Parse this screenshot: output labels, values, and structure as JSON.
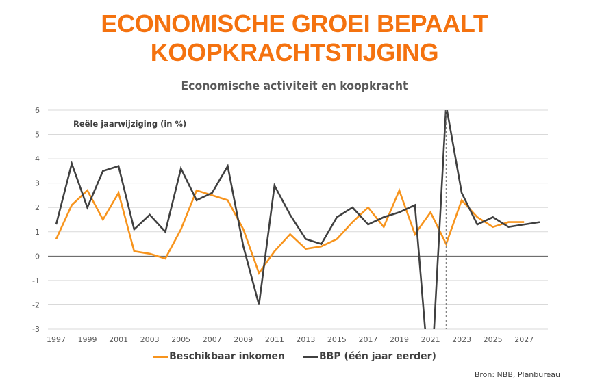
{
  "header": {
    "title_line1": "ECONOMISCHE GROEI BEPAALT",
    "title_line2": "KOOPKRACHTSTIJGING"
  },
  "chart_data": {
    "type": "line",
    "title": "Economische activiteit en koopkracht",
    "ylabel": "Reële jaarwijziging (in %)",
    "xlabel": "",
    "ylim": [
      -3,
      6
    ],
    "yticks": [
      6,
      5,
      4,
      3,
      2,
      1,
      0,
      -1,
      -2,
      -3
    ],
    "x": [
      1997,
      1998,
      1999,
      2000,
      2001,
      2002,
      2003,
      2004,
      2005,
      2006,
      2007,
      2008,
      2009,
      2010,
      2011,
      2012,
      2013,
      2014,
      2015,
      2016,
      2017,
      2018,
      2019,
      2020,
      2021,
      2022,
      2023,
      2024,
      2025,
      2026,
      2027,
      2028
    ],
    "xticks": [
      "1997",
      "1999",
      "2001",
      "2003",
      "2005",
      "2007",
      "2009",
      "2011",
      "2013",
      "2015",
      "2017",
      "2019",
      "2021",
      "2023",
      "2025",
      "2027"
    ],
    "grid": true,
    "legend_position": "bottom",
    "forecast_marker_year": 2022,
    "series": [
      {
        "name": "Beschikbaar inkomen",
        "color": "#f7941d",
        "values": [
          0.7,
          2.1,
          2.7,
          1.5,
          2.6,
          0.2,
          0.1,
          -0.1,
          1.1,
          2.7,
          2.5,
          2.3,
          1.1,
          -0.7,
          0.2,
          0.9,
          0.3,
          0.4,
          0.7,
          1.4,
          2.0,
          1.2,
          2.7,
          0.9,
          1.8,
          0.5,
          2.3,
          1.6,
          1.2,
          1.4,
          1.4,
          null
        ]
      },
      {
        "name": "BBP (één jaar eerder)",
        "color": "#404040",
        "values": [
          1.3,
          3.8,
          2.0,
          3.5,
          3.7,
          1.1,
          1.7,
          1.0,
          3.6,
          2.3,
          2.6,
          3.7,
          0.4,
          -2.0,
          2.9,
          1.7,
          0.7,
          0.5,
          1.6,
          2.0,
          1.3,
          1.6,
          1.8,
          2.1,
          -5.7,
          6.2,
          2.6,
          1.3,
          1.6,
          1.2,
          1.3,
          1.4
        ]
      }
    ],
    "source": "Bron: NBB, Planbureau"
  }
}
